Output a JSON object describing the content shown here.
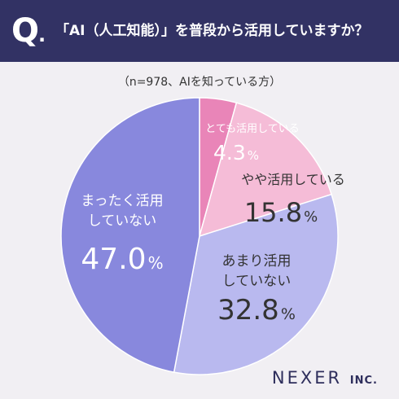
{
  "header": {
    "q_mark": "Q",
    "q_dot": ".",
    "question": "「AI（人工知能）」を普段から活用していますか？"
  },
  "subtitle": "（n=978、AIを知っている方）",
  "colors": {
    "header_bg": "#323264",
    "slice_1": "#e985b8",
    "slice_2": "#f5bcd7",
    "slice_3": "#b9b9ef",
    "slice_4": "#8888dd"
  },
  "chart_data": {
    "type": "pie",
    "title": "「AI（人工知能）」を普段から活用していますか？",
    "subtitle": "（n=978、AIを知っている方）",
    "slices": [
      {
        "label": "とても活用している",
        "value": 4.3,
        "value_text": "4.3",
        "unit": "%"
      },
      {
        "label": "やや活用している",
        "value": 15.8,
        "value_text": "15.8",
        "unit": "%"
      },
      {
        "label": "あまり活用していない",
        "value": 32.8,
        "value_text": "32.8",
        "unit": "%"
      },
      {
        "label": "まったく活用していない",
        "value": 47.0,
        "value_text": "47.0",
        "unit": "%"
      }
    ]
  },
  "logo": {
    "name": "NEXER",
    "suffix": "INC."
  }
}
